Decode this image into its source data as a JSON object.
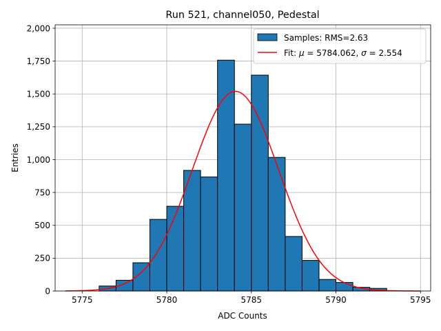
{
  "chart_data": {
    "type": "bar",
    "title": "Run 521, channel050, Pedestal",
    "xlabel": "ADC Counts",
    "ylabel": "Entries",
    "xlim": [
      5773.4,
      5795.6
    ],
    "ylim": [
      0,
      2026
    ],
    "xticks": [
      5775,
      5780,
      5785,
      5790,
      5795
    ],
    "yticks": [
      0,
      250,
      500,
      750,
      1000,
      1250,
      1500,
      1750,
      2000
    ],
    "grid": true,
    "legend_position": "top-right",
    "histogram": {
      "name": "Samples: RMS=2.63",
      "color": "#1f77b4",
      "bin_edges": [
        5776,
        5777,
        5778,
        5779,
        5780,
        5781,
        5782,
        5783,
        5784,
        5785,
        5786,
        5787,
        5788,
        5789,
        5790,
        5791,
        5792,
        5793
      ],
      "counts": [
        38,
        82,
        215,
        545,
        645,
        918,
        868,
        1757,
        1270,
        1643,
        1017,
        415,
        233,
        88,
        65,
        28,
        20
      ]
    },
    "fit": {
      "name_prefix": "Fit: ",
      "mu_symbol": "μ",
      "mu_text": " = 5784.062, ",
      "sigma_symbol": "σ",
      "sigma_text": " = 2.554",
      "color": "#ff0000",
      "mu": 5784.062,
      "sigma": 2.554,
      "amplitude": 1520,
      "x_range": [
        5774,
        5795
      ]
    }
  }
}
